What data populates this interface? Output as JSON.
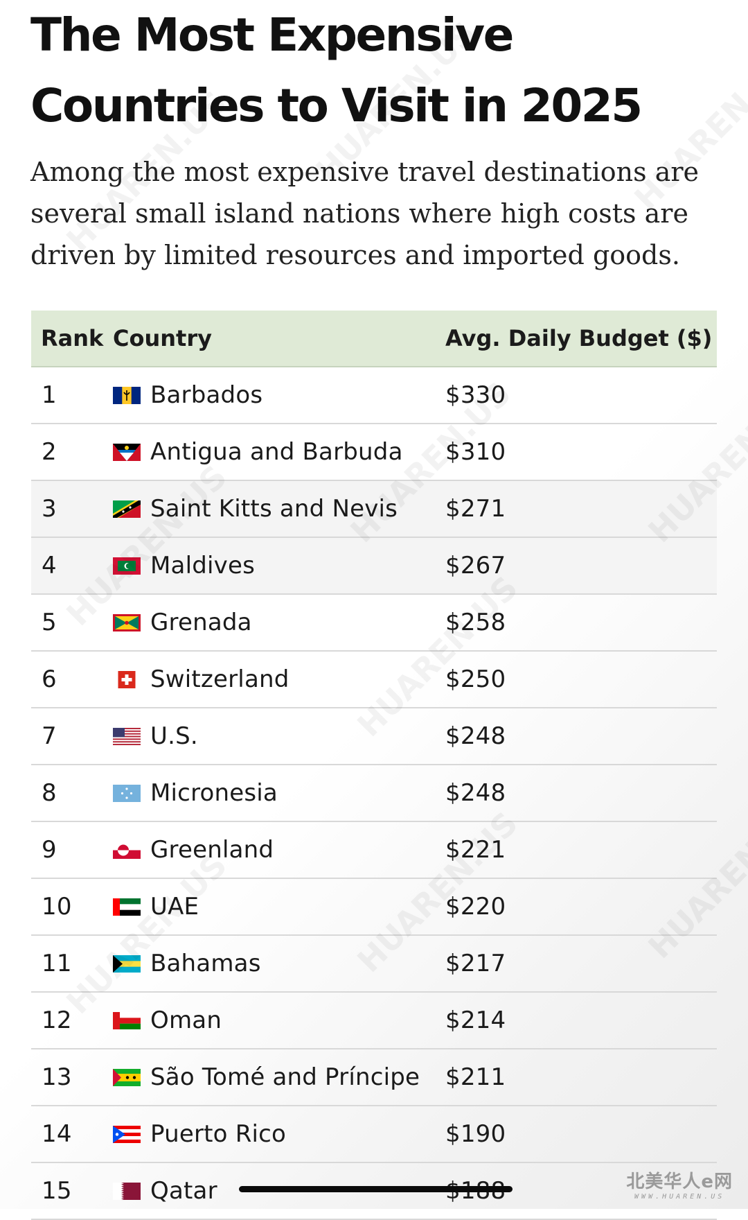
{
  "header": {
    "title": "The Most Expensive Countries to Visit in 2025",
    "subtitle": "Among the most expensive travel destinations are several small island nations where high costs are driven by limited resources and imported goods."
  },
  "table": {
    "columns": [
      "Rank",
      "Country",
      "Avg. Daily Budget ($)"
    ],
    "rows": [
      {
        "rank": "1",
        "country": "Barbados",
        "budget": "$330",
        "flag": "barbados-flag-icon"
      },
      {
        "rank": "2",
        "country": "Antigua and Barbuda",
        "budget": "$310",
        "flag": "antigua-flag-icon"
      },
      {
        "rank": "3",
        "country": "Saint Kitts and Nevis",
        "budget": "$271",
        "flag": "saint-kitts-flag-icon"
      },
      {
        "rank": "4",
        "country": "Maldives",
        "budget": "$267",
        "flag": "maldives-flag-icon"
      },
      {
        "rank": "5",
        "country": "Grenada",
        "budget": "$258",
        "flag": "grenada-flag-icon"
      },
      {
        "rank": "6",
        "country": "Switzerland",
        "budget": "$250",
        "flag": "switzerland-flag-icon"
      },
      {
        "rank": "7",
        "country": "U.S.",
        "budget": "$248",
        "flag": "usa-flag-icon"
      },
      {
        "rank": "8",
        "country": "Micronesia",
        "budget": "$248",
        "flag": "micronesia-flag-icon"
      },
      {
        "rank": "9",
        "country": "Greenland",
        "budget": "$221",
        "flag": "greenland-flag-icon"
      },
      {
        "rank": "10",
        "country": "UAE",
        "budget": "$220",
        "flag": "uae-flag-icon"
      },
      {
        "rank": "11",
        "country": "Bahamas",
        "budget": "$217",
        "flag": "bahamas-flag-icon"
      },
      {
        "rank": "12",
        "country": "Oman",
        "budget": "$214",
        "flag": "oman-flag-icon"
      },
      {
        "rank": "13",
        "country": "São Tomé and Príncipe",
        "budget": "$211",
        "flag": "sao-tome-flag-icon"
      },
      {
        "rank": "14",
        "country": "Puerto Rico",
        "budget": "$190",
        "flag": "puerto-rico-flag-icon"
      },
      {
        "rank": "15",
        "country": "Qatar",
        "budget": "$188",
        "flag": "qatar-flag-icon"
      }
    ]
  },
  "chart_data": {
    "type": "table",
    "columns": [
      "Rank",
      "Country",
      "Avg. Daily Budget ($)"
    ],
    "rows": [
      [
        1,
        "Barbados",
        330
      ],
      [
        2,
        "Antigua and Barbuda",
        310
      ],
      [
        3,
        "Saint Kitts and Nevis",
        271
      ],
      [
        4,
        "Maldives",
        267
      ],
      [
        5,
        "Grenada",
        258
      ],
      [
        6,
        "Switzerland",
        250
      ],
      [
        7,
        "U.S.",
        248
      ],
      [
        8,
        "Micronesia",
        248
      ],
      [
        9,
        "Greenland",
        221
      ],
      [
        10,
        "UAE",
        220
      ],
      [
        11,
        "Bahamas",
        217
      ],
      [
        12,
        "Oman",
        214
      ],
      [
        13,
        "São Tomé and Príncipe",
        211
      ],
      [
        14,
        "Puerto Rico",
        190
      ],
      [
        15,
        "Qatar",
        188
      ]
    ]
  },
  "watermark": {
    "corner_text": "北美华人e网",
    "corner_url": "WWW.HUAREN.US",
    "diagonal_text": "HUAREN.US"
  },
  "colors": {
    "header_bg": "#dfead6",
    "row_shade": "#f4f4f4",
    "divider": "#d8d8d8"
  }
}
